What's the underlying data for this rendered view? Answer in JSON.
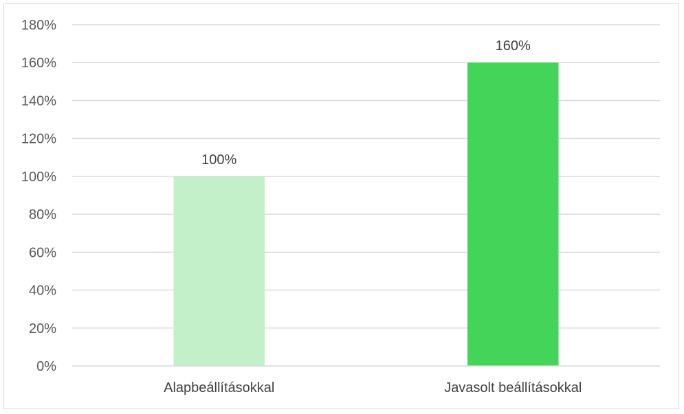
{
  "chart_data": {
    "type": "bar",
    "categories": [
      "Alapbeállításokkal",
      "Javasolt beállításokkal"
    ],
    "values": [
      100,
      160
    ],
    "data_labels": [
      "100%",
      "160%"
    ],
    "colors": [
      "#c3f0c9",
      "#45d45a"
    ],
    "ylim": [
      0,
      180
    ],
    "yticks": [
      0,
      20,
      40,
      60,
      80,
      100,
      120,
      140,
      160,
      180
    ],
    "ytick_labels": [
      "0%",
      "20%",
      "40%",
      "60%",
      "80%",
      "100%",
      "120%",
      "140%",
      "160%",
      "180%"
    ],
    "grid": true,
    "legend": "none",
    "title": "",
    "xlabel": "",
    "ylabel": ""
  }
}
